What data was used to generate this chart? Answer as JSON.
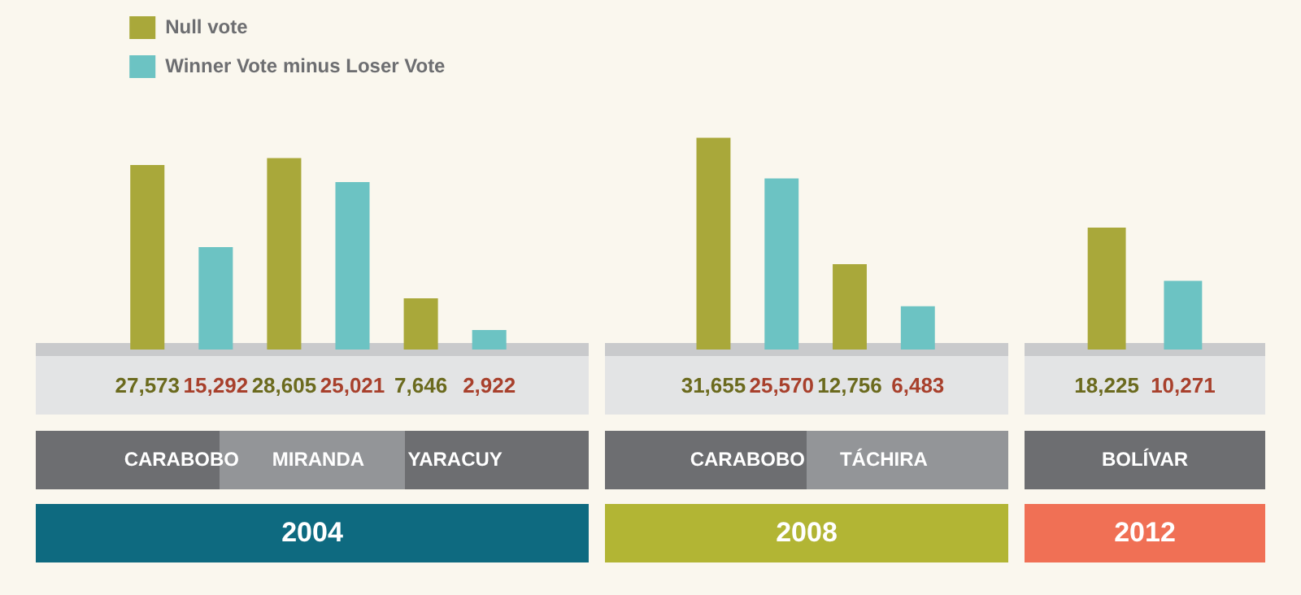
{
  "chart_data": [
    {
      "type": "bar",
      "title": "2004",
      "categories": [
        "CARABOBO",
        "MIRANDA",
        "YARACUY"
      ],
      "legend": "top left",
      "grid": false,
      "series": [
        {
          "name": "Null vote",
          "color": "#a9a83a",
          "values": [
            27573,
            28605,
            7646
          ],
          "value_labels": [
            "27,573",
            "28,605",
            "7,646"
          ]
        },
        {
          "name": "Winner Vote minus Loser Vote",
          "color": "#6cc3c3",
          "values": [
            15292,
            25021,
            2922
          ],
          "value_labels": [
            "15,292",
            "25,021",
            "2,922"
          ]
        }
      ]
    },
    {
      "type": "bar",
      "title": "2008",
      "categories": [
        "CARABOBO",
        "TÁCHIRA"
      ],
      "grid": false,
      "series": [
        {
          "color": "#a9a83a",
          "values": [
            31655,
            12756
          ],
          "value_labels": [
            "31,655",
            "12,756"
          ]
        },
        {
          "color": "#6cc3c3",
          "values": [
            25570,
            6483
          ],
          "value_labels": [
            "25,570",
            "6,483"
          ]
        }
      ]
    },
    {
      "type": "bar",
      "title": "2012",
      "categories": [
        "BOLÍVAR"
      ],
      "grid": false,
      "series": [
        {
          "color": "#a9a83a",
          "values": [
            18225
          ],
          "value_labels": [
            "18,225"
          ]
        },
        {
          "color": "#6cc3c3",
          "values": [
            10271
          ],
          "value_labels": [
            "10,271"
          ]
        }
      ]
    }
  ]
}
